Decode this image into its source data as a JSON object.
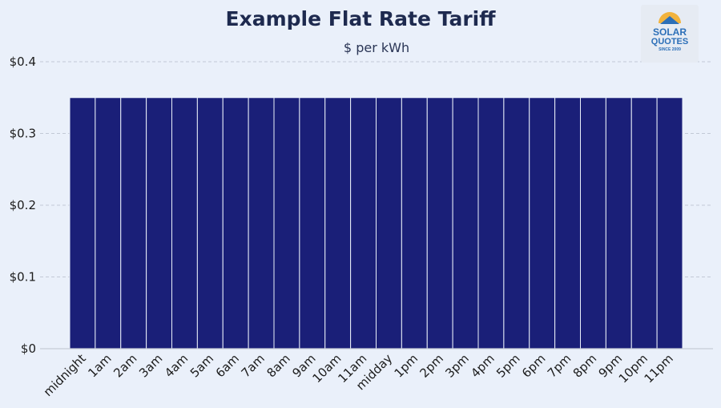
{
  "chart_data": {
    "type": "bar",
    "title": "Example Flat Rate Tariff",
    "subtitle": "$ per kWh",
    "xlabel": "",
    "ylabel": "",
    "categories": [
      "midnight",
      "1am",
      "2am",
      "3am",
      "4am",
      "5am",
      "6am",
      "7am",
      "8am",
      "9am",
      "10am",
      "11am",
      "midday",
      "1pm",
      "2pm",
      "3pm",
      "4pm",
      "5pm",
      "6pm",
      "7pm",
      "8pm",
      "9pm",
      "10pm",
      "11pm"
    ],
    "values": [
      0.35,
      0.35,
      0.35,
      0.35,
      0.35,
      0.35,
      0.35,
      0.35,
      0.35,
      0.35,
      0.35,
      0.35,
      0.35,
      0.35,
      0.35,
      0.35,
      0.35,
      0.35,
      0.35,
      0.35,
      0.35,
      0.35,
      0.35,
      0.35
    ],
    "ylim": [
      0,
      0.4
    ],
    "yticks": [
      0,
      0.1,
      0.2,
      0.3,
      0.4
    ],
    "ytick_labels": [
      "$0",
      "$0.1",
      "$0.2",
      "$0.3",
      "$0.4"
    ],
    "grid": true,
    "legend": "none",
    "colors": {
      "bar": "#1a1f78",
      "background": "#eaf0fa"
    }
  },
  "logo": {
    "line1": "SOLAR",
    "line2": "QUOTES",
    "tagline": "SINCE 2009"
  }
}
